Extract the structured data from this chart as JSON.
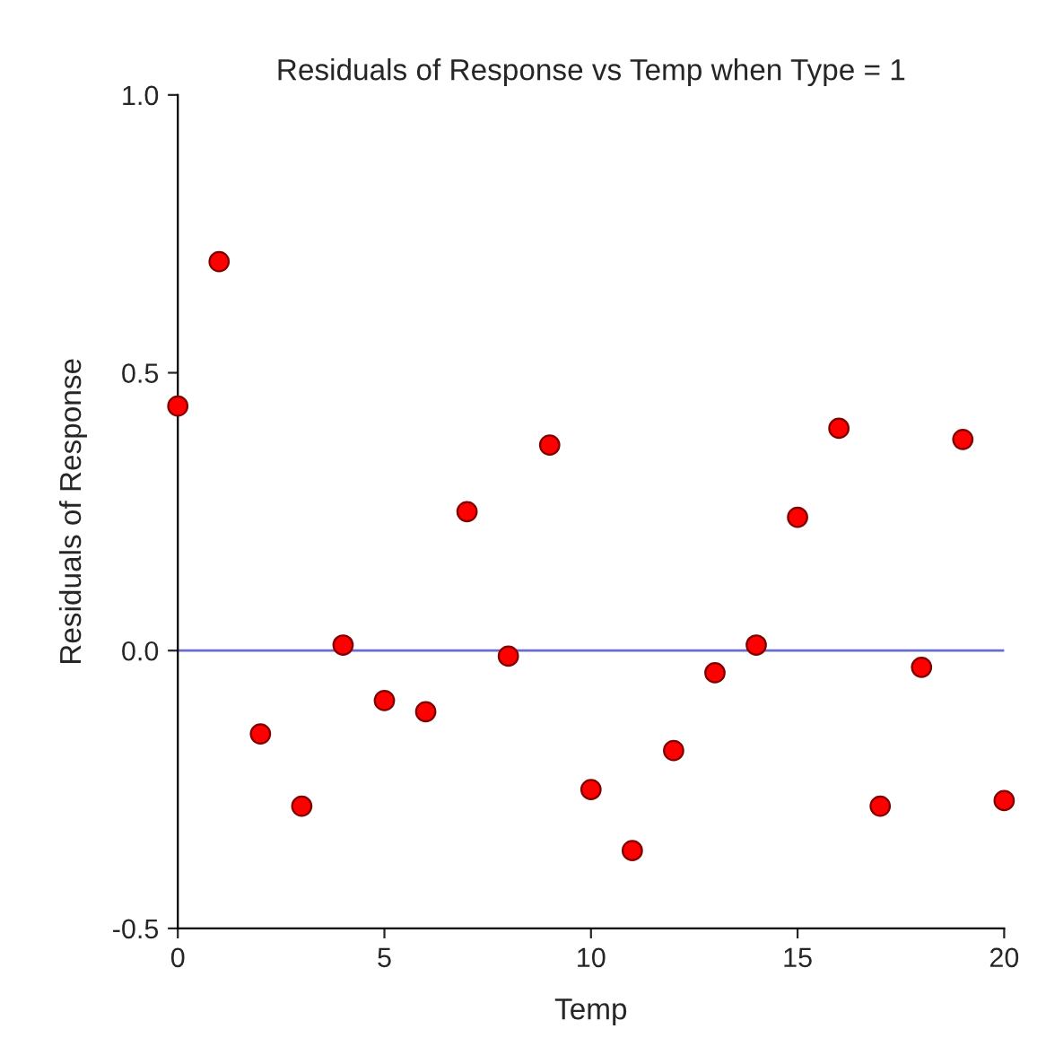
{
  "chart_data": {
    "type": "scatter",
    "title": "Residuals of Response vs Temp when Type = 1",
    "xlabel": "Temp",
    "ylabel": "Residuals of Response",
    "x": [
      0,
      1,
      2,
      3,
      4,
      5,
      6,
      7,
      8,
      9,
      10,
      11,
      12,
      13,
      14,
      15,
      16,
      17,
      18,
      19,
      20
    ],
    "values": [
      0.44,
      0.7,
      -0.15,
      -0.28,
      0.01,
      -0.09,
      -0.11,
      0.25,
      -0.01,
      0.37,
      -0.25,
      -0.36,
      -0.18,
      -0.04,
      0.01,
      0.24,
      0.4,
      -0.28,
      -0.03,
      0.38,
      -0.27
    ],
    "color": "#ff0000",
    "marker": "circle",
    "xlim": [
      0,
      20
    ],
    "xticks": [
      0,
      5,
      10,
      15,
      20
    ],
    "ylim": [
      -0.5,
      1.0
    ],
    "yticks": [
      {
        "value": -0.5,
        "label": "-0.5"
      },
      {
        "value": 0.0,
        "label": "0.0"
      },
      {
        "value": 0.5,
        "label": "0.5"
      },
      {
        "value": 1.0,
        "label": "1.0"
      }
    ],
    "ref_lines": [
      {
        "axis": "y",
        "value": 0,
        "label": null,
        "color": "#6b6bd0"
      }
    ],
    "grid": false
  }
}
